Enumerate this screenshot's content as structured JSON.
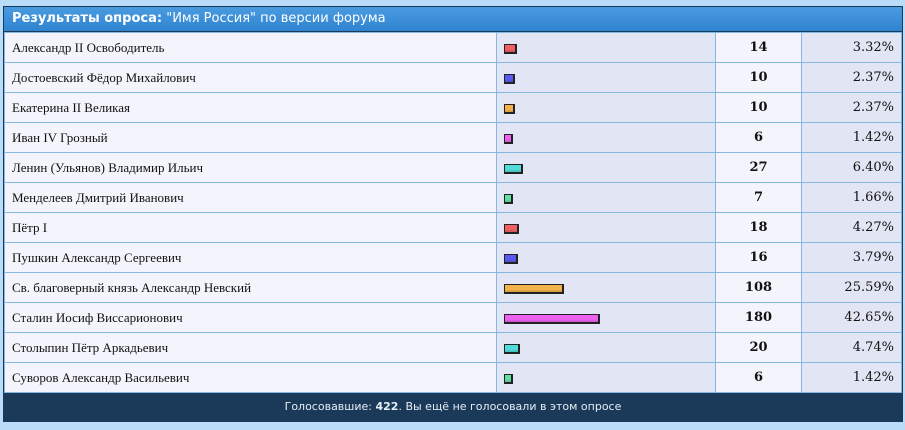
{
  "header": {
    "label": "Результаты опроса:",
    "title": "\"Имя Россия\" по версии форума"
  },
  "bar_colors": [
    "#f06060",
    "#5a5af0",
    "#f4b24a",
    "#ee60ee",
    "#50dcd8",
    "#60e0a0"
  ],
  "rows": [
    {
      "name": "Александр II Освободитель",
      "votes": "14",
      "pct": "3.32%",
      "value": 3.32
    },
    {
      "name": "Достоевский Фёдор Михайлович",
      "votes": "10",
      "pct": "2.37%",
      "value": 2.37
    },
    {
      "name": "Екатерина II Великая",
      "votes": "10",
      "pct": "2.37%",
      "value": 2.37
    },
    {
      "name": "Иван IV Грозный",
      "votes": "6",
      "pct": "1.42%",
      "value": 1.42
    },
    {
      "name": "Ленин (Ульянов) Владимир Ильич",
      "votes": "27",
      "pct": "6.40%",
      "value": 6.4
    },
    {
      "name": "Менделеев Дмитрий Иванович",
      "votes": "7",
      "pct": "1.66%",
      "value": 1.66
    },
    {
      "name": "Пётр I",
      "votes": "18",
      "pct": "4.27%",
      "value": 4.27
    },
    {
      "name": "Пушкин Александр Сергеевич",
      "votes": "16",
      "pct": "3.79%",
      "value": 3.79
    },
    {
      "name": "Св. благоверный князь Александр Невский",
      "votes": "108",
      "pct": "25.59%",
      "value": 25.59
    },
    {
      "name": "Сталин Иосиф Виссарионович",
      "votes": "180",
      "pct": "42.65%",
      "value": 42.65
    },
    {
      "name": "Столыпин Пётр Аркадьевич",
      "votes": "20",
      "pct": "4.74%",
      "value": 4.74
    },
    {
      "name": "Суворов Александр Васильевич",
      "votes": "6",
      "pct": "1.42%",
      "value": 1.42
    }
  ],
  "footer": {
    "prefix": "Голосовавшие:",
    "total": "422",
    "suffix": ". Вы ещё не голосовали в этом опросе"
  }
}
